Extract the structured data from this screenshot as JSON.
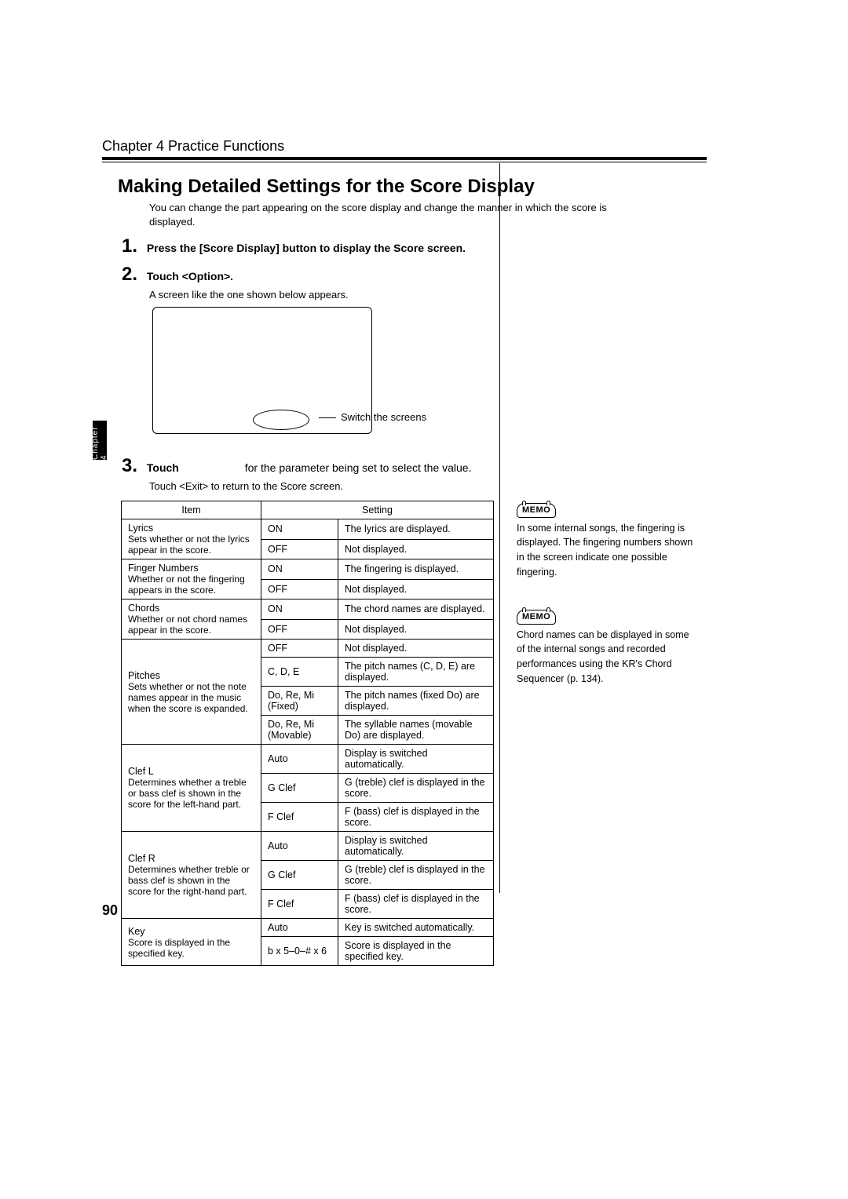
{
  "chapter_header": "Chapter 4 Practice Functions",
  "section_title": "Making Detailed Settings for the Score Display",
  "intro": "You can change the part appearing on the score display and change the manner in which the score is displayed.",
  "steps": {
    "s1": {
      "num": "1.",
      "text": "Press the [Score Display] button to display the Score screen."
    },
    "s2": {
      "num": "2.",
      "text": "Touch <Option>.",
      "sub": "A screen like the one shown below appears."
    },
    "s3": {
      "num": "3.",
      "text_a": "Touch",
      "text_b": "for the parameter being set to select the value.",
      "sub": "Touch <Exit> to return to the Score screen."
    }
  },
  "leader_label": "Switch the screens",
  "side_tab": "Chapter 4",
  "table": {
    "head": {
      "item": "Item",
      "setting": "Setting"
    },
    "rows": [
      {
        "item_title": "Lyrics",
        "item_desc": "Sets whether or not the lyrics appear in the score.",
        "opts": [
          {
            "opt": "ON",
            "desc": "The lyrics are displayed."
          },
          {
            "opt": "OFF",
            "desc": "Not displayed."
          }
        ]
      },
      {
        "item_title": "Finger Numbers",
        "item_desc": "Whether or not the fingering appears in the score.",
        "opts": [
          {
            "opt": "ON",
            "desc": "The fingering is displayed."
          },
          {
            "opt": "OFF",
            "desc": "Not displayed."
          }
        ]
      },
      {
        "item_title": "Chords",
        "item_desc": "Whether or not chord names appear in the score.",
        "opts": [
          {
            "opt": "ON",
            "desc": "The chord names are displayed."
          },
          {
            "opt": "OFF",
            "desc": "Not displayed."
          }
        ]
      },
      {
        "item_title": "Pitches",
        "item_desc": "Sets whether or not the note names appear in the music when the score is expanded.",
        "opts": [
          {
            "opt": "OFF",
            "desc": "Not displayed."
          },
          {
            "opt": "C, D, E",
            "desc": "The pitch names (C, D, E) are displayed."
          },
          {
            "opt": "Do, Re, Mi (Fixed)",
            "desc": "The pitch names (fixed Do) are displayed."
          },
          {
            "opt": "Do, Re, Mi (Movable)",
            "desc": "The syllable names (movable Do) are displayed."
          }
        ]
      },
      {
        "item_title": "Clef L",
        "item_desc": "Determines whether a treble or bass clef is shown in the score for the left-hand part.",
        "opts": [
          {
            "opt": "Auto",
            "desc": "Display is switched automatically."
          },
          {
            "opt": "G Clef",
            "desc": "G (treble) clef is displayed in the score."
          },
          {
            "opt": "F Clef",
            "desc": "F (bass) clef is displayed in the score."
          }
        ]
      },
      {
        "item_title": "Clef R",
        "item_desc": "Determines whether treble or bass clef is shown in the score for the right-hand part.",
        "opts": [
          {
            "opt": "Auto",
            "desc": "Display is switched automatically."
          },
          {
            "opt": "G Clef",
            "desc": "G (treble) clef is displayed in the score."
          },
          {
            "opt": "F Clef",
            "desc": "F (bass) clef is displayed in the score."
          }
        ]
      },
      {
        "item_title": "Key",
        "item_desc": "Score is displayed in the specified key.",
        "opts": [
          {
            "opt": "Auto",
            "desc": "Key is switched automatically."
          },
          {
            "opt": "b x 5–0–# x 6",
            "desc": "Score is displayed in the specified key."
          }
        ]
      }
    ]
  },
  "memos": {
    "m1": {
      "label": "MEMO",
      "text": "In some internal songs, the fingering is displayed. The fingering numbers shown in the screen indicate one possible fingering."
    },
    "m2": {
      "label": "MEMO",
      "text": "Chord names can be displayed in some of the internal songs and recorded performances using the KR's Chord Sequencer (p. 134)."
    }
  },
  "page_number": "90"
}
